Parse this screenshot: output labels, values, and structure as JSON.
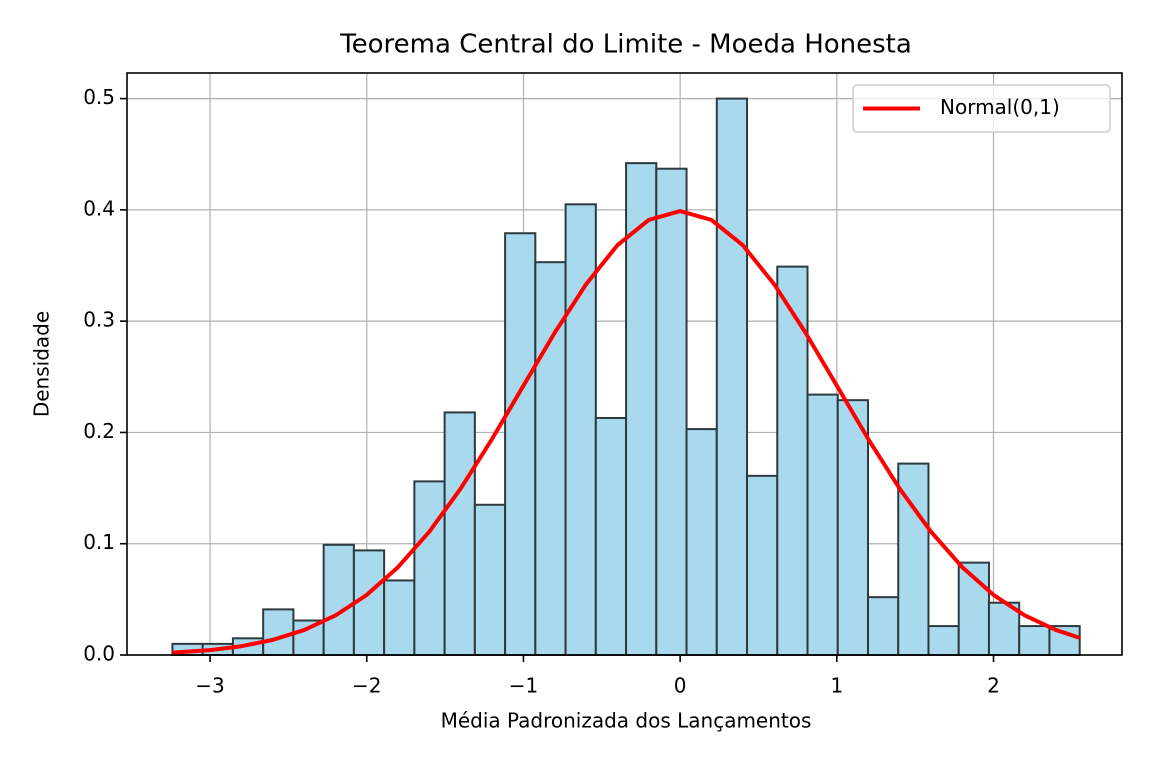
{
  "chart_data": {
    "type": "histogram",
    "title": "Teorema Central do Limite - Moeda Honesta",
    "xlabel": "Média Padronizada dos Lançamentos",
    "ylabel": "Densidade",
    "bins": [
      -3.24,
      -3.047,
      -2.854,
      -2.661,
      -2.468,
      -2.275,
      -2.082,
      -1.889,
      -1.696,
      -1.503,
      -1.31,
      -1.117,
      -0.924,
      -0.731,
      -0.538,
      -0.345,
      -0.152,
      0.041,
      0.234,
      0.427,
      0.62,
      0.813,
      1.006,
      1.199,
      1.392,
      1.585,
      1.778,
      1.971,
      2.164,
      2.357,
      2.55
    ],
    "values": [
      0.01,
      0.01,
      0.015,
      0.041,
      0.031,
      0.099,
      0.094,
      0.067,
      0.156,
      0.218,
      0.135,
      0.379,
      0.353,
      0.405,
      0.213,
      0.442,
      0.437,
      0.203,
      0.5,
      0.161,
      0.349,
      0.234,
      0.229,
      0.052,
      0.172,
      0.026,
      0.083,
      0.047,
      0.026,
      0.026
    ],
    "color": "#a8d9ec",
    "edgecolor": "#2d3a40",
    "series": [
      {
        "name": "Normal(0,1)",
        "type": "line",
        "color": "#ff0000",
        "x": [
          -3.24,
          -3.0,
          -2.8,
          -2.6,
          -2.4,
          -2.2,
          -2.0,
          -1.8,
          -1.6,
          -1.4,
          -1.2,
          -1.0,
          -0.8,
          -0.6,
          -0.4,
          -0.2,
          0,
          0.2,
          0.4,
          0.6,
          0.8,
          1.0,
          1.2,
          1.4,
          1.6,
          1.8,
          2.0,
          2.2,
          2.4,
          2.55
        ],
        "values": [
          0.0021,
          0.0044,
          0.0079,
          0.0136,
          0.0224,
          0.0355,
          0.054,
          0.079,
          0.1109,
          0.1497,
          0.1942,
          0.242,
          0.2897,
          0.3332,
          0.3683,
          0.391,
          0.3989,
          0.391,
          0.3683,
          0.3332,
          0.2897,
          0.242,
          0.1942,
          0.1497,
          0.1109,
          0.079,
          0.054,
          0.0355,
          0.0224,
          0.0154
        ]
      }
    ],
    "xlim": [
      -3.53,
      2.82
    ],
    "ylim": [
      0,
      0.523
    ],
    "xticks": [
      {
        "value": -3,
        "label": "−3"
      },
      {
        "value": -2,
        "label": "−2"
      },
      {
        "value": -1,
        "label": "−1"
      },
      0,
      1,
      2
    ],
    "yticks": [
      {
        "value": 0,
        "label": "0.0"
      },
      0.1,
      0.2,
      0.3,
      0.4,
      0.5
    ],
    "grid": true,
    "legend": "upper right"
  }
}
